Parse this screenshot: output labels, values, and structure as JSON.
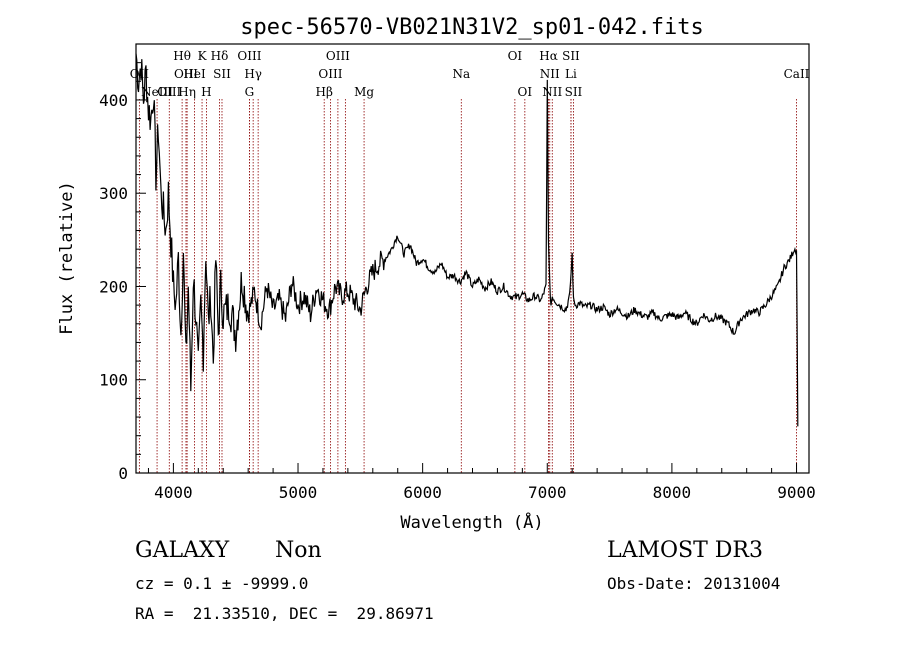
{
  "chart_data": {
    "type": "line",
    "title": "spec-56570-VB021N31V2_sp01-042.fits",
    "xlabel": "Wavelength (Å)",
    "ylabel": "Flux (relative)",
    "xlim": [
      3700,
      9100
    ],
    "ylim": [
      0,
      460
    ],
    "xticks": [
      4000,
      5000,
      6000,
      7000,
      8000,
      9000
    ],
    "yticks": [
      0,
      100,
      200,
      300,
      400
    ],
    "grid": false,
    "spectrum": {
      "x": [
        3700,
        3720,
        3740,
        3760,
        3780,
        3800,
        3820,
        3840,
        3860,
        3880,
        3900,
        3920,
        3940,
        3960,
        3980,
        4000,
        4020,
        4040,
        4060,
        4080,
        4100,
        4120,
        4140,
        4160,
        4180,
        4200,
        4220,
        4240,
        4260,
        4280,
        4300,
        4320,
        4340,
        4360,
        4380,
        4400,
        4450,
        4500,
        4550,
        4600,
        4650,
        4700,
        4750,
        4800,
        4850,
        4900,
        4950,
        5000,
        5050,
        5100,
        5150,
        5200,
        5250,
        5300,
        5350,
        5400,
        5450,
        5500,
        5550,
        5600,
        5650,
        5700,
        5750,
        5780,
        5800,
        5850,
        5900,
        5950,
        6000,
        6050,
        6100,
        6150,
        6200,
        6250,
        6300,
        6350,
        6400,
        6450,
        6500,
        6550,
        6600,
        6650,
        6700,
        6750,
        6800,
        6850,
        6900,
        6950,
        6990,
        7000,
        7010,
        7020,
        7030,
        7040,
        7060,
        7100,
        7150,
        7180,
        7200,
        7210,
        7230,
        7260,
        7300,
        7350,
        7400,
        7450,
        7500,
        7550,
        7600,
        7650,
        7700,
        7750,
        7800,
        7850,
        7900,
        7950,
        8000,
        8050,
        8100,
        8150,
        8200,
        8250,
        8300,
        8350,
        8400,
        8450,
        8500,
        8550,
        8600,
        8650,
        8700,
        8750,
        8800,
        8850,
        8900,
        8950,
        8980,
        9000,
        9010
      ],
      "y": [
        450,
        420,
        440,
        400,
        430,
        390,
        380,
        410,
        320,
        370,
        300,
        280,
        260,
        300,
        250,
        200,
        180,
        230,
        150,
        240,
        120,
        200,
        90,
        210,
        170,
        110,
        180,
        130,
        240,
        160,
        190,
        120,
        230,
        150,
        200,
        170,
        180,
        150,
        210,
        170,
        195,
        160,
        200,
        175,
        185,
        165,
        205,
        180,
        190,
        170,
        200,
        185,
        175,
        200,
        190,
        195,
        185,
        175,
        200,
        215,
        225,
        230,
        240,
        250,
        255,
        235,
        245,
        225,
        230,
        220,
        215,
        225,
        210,
        212,
        205,
        215,
        200,
        208,
        198,
        205,
        195,
        200,
        190,
        188,
        192,
        185,
        190,
        185,
        200,
        420,
        250,
        200,
        180,
        190,
        185,
        180,
        175,
        190,
        235,
        185,
        180,
        182,
        178,
        180,
        175,
        178,
        170,
        176,
        172,
        168,
        175,
        170,
        167,
        172,
        165,
        168,
        170,
        166,
        172,
        165,
        160,
        170,
        164,
        168,
        165,
        160,
        150,
        165,
        170,
        175,
        172,
        180,
        190,
        200,
        220,
        230,
        240,
        240,
        50
      ],
      "color": "#000000"
    },
    "emission_lines": [
      {
        "x": 3727,
        "label": "OII",
        "row": 1
      },
      {
        "x": 3869,
        "label": "NeIII",
        "row": 2
      },
      {
        "x": 3967,
        "label": "OIII",
        "row": 2
      },
      {
        "x": 4070,
        "label": "Hθ",
        "row": 0
      },
      {
        "x": 4101,
        "label": "OIII",
        "row": 1
      },
      {
        "x": 4170,
        "label": "HeI",
        "row": 1
      },
      {
        "x": 4110,
        "label": "Hη",
        "row": 2
      },
      {
        "x": 4230,
        "label": "K",
        "row": 0
      },
      {
        "x": 4265,
        "label": "H",
        "row": 2
      },
      {
        "x": 4370,
        "label": "Hδ",
        "row": 0
      },
      {
        "x": 4390,
        "label": "SII",
        "row": 1
      },
      {
        "x": 4610,
        "label": "OIII",
        "row": 0
      },
      {
        "x": 4640,
        "label": "Hγ",
        "row": 1
      },
      {
        "x": 4610,
        "label": "G",
        "row": 2
      },
      {
        "x": 4680,
        "label": "",
        "row": 3
      },
      {
        "x": 5210,
        "label": "Hβ",
        "row": 2
      },
      {
        "x": 5320,
        "label": "OIII",
        "row": 0
      },
      {
        "x": 5260,
        "label": "OIII",
        "row": 1
      },
      {
        "x": 5380,
        "label": "",
        "row": 3
      },
      {
        "x": 5530,
        "label": "Mg",
        "row": 2
      },
      {
        "x": 6310,
        "label": "Na",
        "row": 1
      },
      {
        "x": 6740,
        "label": "OI",
        "row": 0
      },
      {
        "x": 6820,
        "label": "OI",
        "row": 2
      },
      {
        "x": 7010,
        "label": "Hα",
        "row": 0
      },
      {
        "x": 7020,
        "label": "NII",
        "row": 1
      },
      {
        "x": 7040,
        "label": "NII",
        "row": 2
      },
      {
        "x": 7190,
        "label": "SII",
        "row": 0
      },
      {
        "x": 7190,
        "label": "Li",
        "row": 1
      },
      {
        "x": 7210,
        "label": "SII",
        "row": 2
      },
      {
        "x": 9000,
        "label": "CaII",
        "row": 1
      }
    ],
    "emission_line_color": "#8b0000"
  },
  "info": {
    "object_class": "GALAXY",
    "object_subclass": "Non",
    "survey": "LAMOST DR3",
    "cz_line": "cz = 0.1 ± -9999.0",
    "obs_date_line": "Obs-Date: 20131004",
    "coords_line": "RA =  21.33510, DEC =  29.86971"
  }
}
